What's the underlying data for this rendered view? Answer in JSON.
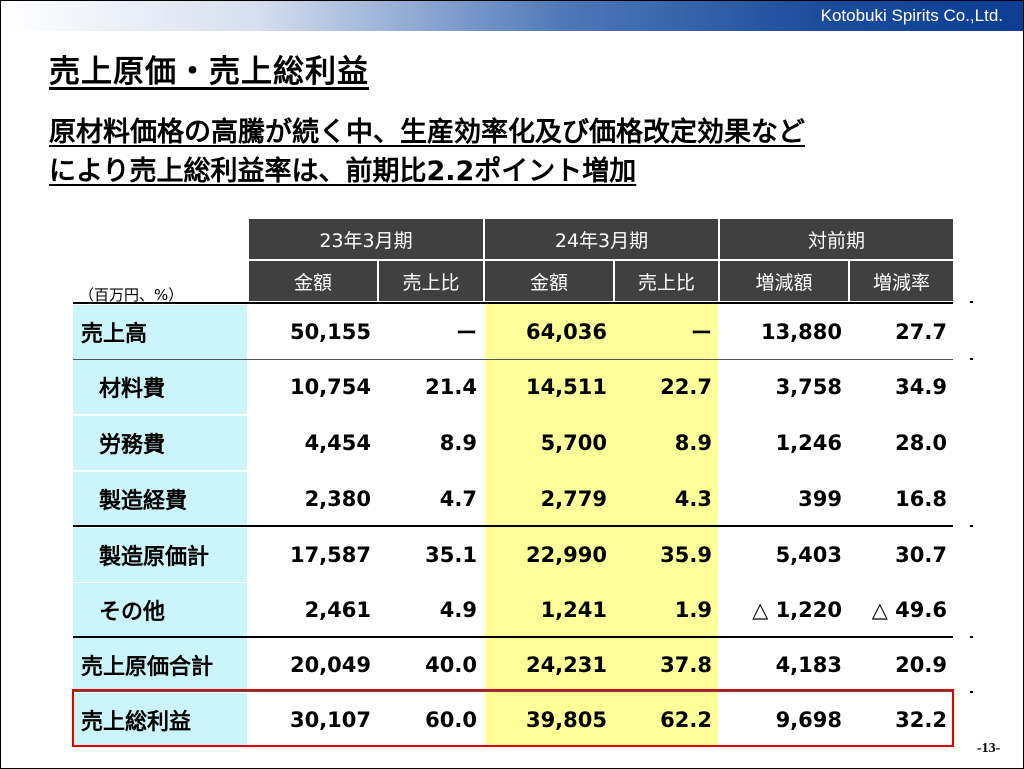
{
  "header": {
    "company": "Kotobuki Spirits Co.,Ltd."
  },
  "title": "売上原価・売上総利益",
  "subtitle": {
    "line1": "原材料価格の高騰が続く中、生産効率化及び価格改定効果など",
    "line2": "により売上総利益率は、前期比2.2ポイント増加"
  },
  "unit": "（百万円、%）",
  "table": {
    "groups": [
      "23年3月期",
      "24年3月期",
      "対前期"
    ],
    "columns": [
      "金額",
      "売上比",
      "金額",
      "売上比",
      "増減額",
      "増減率"
    ],
    "rows": [
      {
        "label": "売上高",
        "values": [
          "50,155",
          "ー",
          "64,036",
          "ー",
          "13,880",
          "27.7"
        ]
      },
      {
        "label": "材料費",
        "values": [
          "10,754",
          "21.4",
          "14,511",
          "22.7",
          "3,758",
          "34.9"
        ]
      },
      {
        "label": "労務費",
        "values": [
          "4,454",
          "8.9",
          "5,700",
          "8.9",
          "1,246",
          "28.0"
        ]
      },
      {
        "label": "製造経費",
        "values": [
          "2,380",
          "4.7",
          "2,779",
          "4.3",
          "399",
          "16.8"
        ]
      },
      {
        "label": "製造原価計",
        "values": [
          "17,587",
          "35.1",
          "22,990",
          "35.9",
          "5,403",
          "30.7"
        ]
      },
      {
        "label": "その他",
        "values": [
          "2,461",
          "4.9",
          "1,241",
          "1.9",
          "△ 1,220",
          "△ 49.6"
        ]
      },
      {
        "label": "売上原価合計",
        "values": [
          "20,049",
          "40.0",
          "24,231",
          "37.8",
          "4,183",
          "20.9"
        ]
      },
      {
        "label": "売上総利益",
        "values": [
          "30,107",
          "60.0",
          "39,805",
          "62.2",
          "9,698",
          "32.2"
        ]
      }
    ]
  },
  "page_number": "-13-",
  "colors": {
    "header_bg": "#404040",
    "label_bg": "#ccf5fb",
    "current_year_bg": "#ffff99",
    "highlight_border": "#e00000"
  }
}
